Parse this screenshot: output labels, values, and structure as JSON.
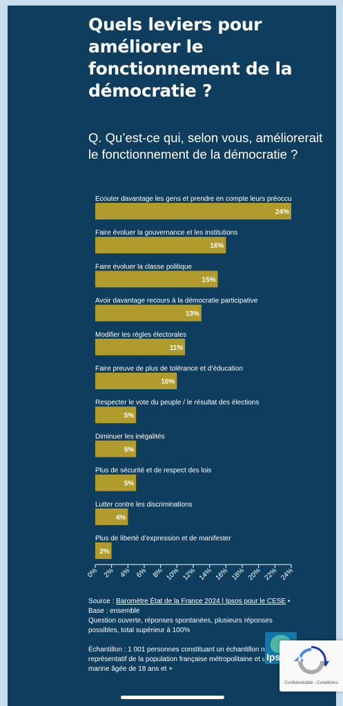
{
  "title": "Quels leviers pour améliorer le fonctionnement de la démocratie ?",
  "question": "Q. Qu’est-ce qui, selon vous, améliorerait le fonctionnement de la démocratie ?",
  "colors": {
    "panel": "#0f3d5e",
    "bar": "#b19b2c",
    "background": "#c9ddef"
  },
  "chart_data": {
    "type": "bar",
    "orientation": "horizontal",
    "categories": [
      "Ecouter davantage les gens et prendre en compte leurs préoccu",
      "Faire évoluer la gouvernance et les institutions",
      "Faire évoluer la classe politique",
      "Avoir davantage recours à la démocratie participative",
      "Modifier les règles électorales",
      "Faire preuve de plus de tolérance et d’éducation",
      "Respecter le vote du peuple / le résultat des élections",
      "Diminuer les inégalités",
      "Plus de sécurité et de respect des lois",
      "Lutter contre les discriminations",
      "Plus de liberté d’expression et de manifester"
    ],
    "values": [
      24,
      16,
      15,
      13,
      11,
      10,
      5,
      5,
      5,
      4,
      2
    ],
    "value_labels": [
      "24%",
      "16%",
      "15%",
      "13%",
      "11%",
      "10%",
      "5%",
      "5%",
      "5%",
      "4%",
      "2%"
    ],
    "xlim": [
      0,
      24
    ],
    "xticks": [
      "0%",
      "2%",
      "4%",
      "6%",
      "8%",
      "10%",
      "12%",
      "14%",
      "16%",
      "18%",
      "20%",
      "22%",
      "24%"
    ],
    "grid": false
  },
  "footer": {
    "source_prefix": "Source : ",
    "source_link": "Baromètre État de la France 2024 | Ipsos pour le CESE",
    "source_suffix": " •",
    "base": "Base : ensemble",
    "question_note": "Question ouverte, réponses spontanées, plusieurs réponses possibles, total supérieur à 100%",
    "sample": "Échantillon : 1 001 personnes constituant un échantillon national représentatif de la population française métropolitaine et ultra-marine âgée de 18 ans et +"
  },
  "logo": {
    "text": "Ipsos"
  },
  "recaptcha": {
    "text": "Confidentialité - Conditions",
    "icon": "recaptcha-icon"
  }
}
